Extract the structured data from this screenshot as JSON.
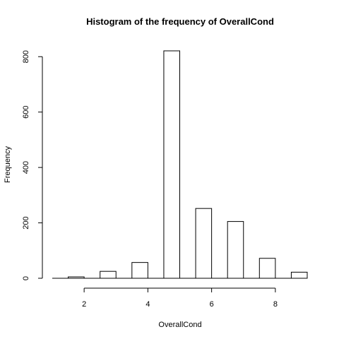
{
  "chart_data": {
    "type": "bar",
    "title": "Histogram of the frequency of OverallCond",
    "xlabel": "OverallCond",
    "ylabel": "Frequency",
    "xlim": [
      1,
      9
    ],
    "ylim": [
      0,
      821
    ],
    "x_ticks": [
      2,
      4,
      6,
      8
    ],
    "y_ticks": [
      0,
      200,
      400,
      600,
      800
    ],
    "bins": [
      {
        "start": 1.5,
        "end": 2.0,
        "value": 5
      },
      {
        "start": 2.5,
        "end": 3.0,
        "value": 25
      },
      {
        "start": 3.5,
        "end": 4.0,
        "value": 57
      },
      {
        "start": 4.5,
        "end": 5.0,
        "value": 821
      },
      {
        "start": 5.5,
        "end": 6.0,
        "value": 252
      },
      {
        "start": 6.5,
        "end": 7.0,
        "value": 205
      },
      {
        "start": 7.5,
        "end": 8.0,
        "value": 72
      },
      {
        "start": 8.5,
        "end": 9.0,
        "value": 22
      }
    ],
    "zero_segments": [
      {
        "start": 1.0,
        "end": 1.5
      },
      {
        "start": 2.0,
        "end": 2.5
      },
      {
        "start": 3.0,
        "end": 3.5
      },
      {
        "start": 4.0,
        "end": 4.5
      },
      {
        "start": 5.0,
        "end": 5.5
      },
      {
        "start": 6.0,
        "end": 6.5
      },
      {
        "start": 7.0,
        "end": 7.5
      },
      {
        "start": 8.0,
        "end": 8.5
      }
    ],
    "grid": false
  }
}
